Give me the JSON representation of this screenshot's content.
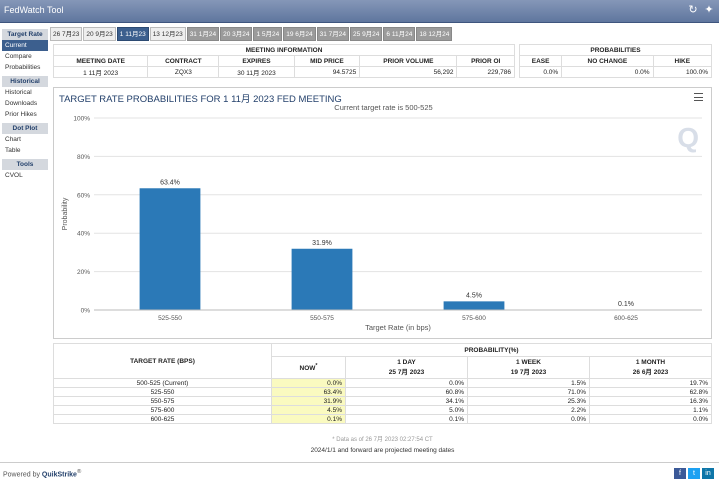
{
  "app": {
    "title": "FedWatch Tool"
  },
  "tabs": [
    "26 7月23",
    "20 9月23",
    "1 11月23",
    "13 12月23",
    "31 1月24",
    "20 3月24",
    "1 5月24",
    "19 6月24",
    "31 7月24",
    "25 9月24",
    "6 11月24",
    "18 12月24"
  ],
  "sidebar": {
    "sections": [
      {
        "header": "Target Rate",
        "items": [
          "Current",
          "Compare",
          "Probabilities"
        ]
      },
      {
        "header": "Historical",
        "items": [
          "Historical",
          "Downloads",
          "Prior Hikes"
        ]
      },
      {
        "header": "Dot Plot",
        "items": [
          "Chart",
          "Table"
        ]
      },
      {
        "header": "Tools",
        "items": [
          "CVOL"
        ]
      }
    ]
  },
  "meeting_info": {
    "title": "MEETING INFORMATION",
    "headers": [
      "MEETING DATE",
      "CONTRACT",
      "EXPIRES",
      "MID PRICE",
      "PRIOR VOLUME",
      "PRIOR OI"
    ],
    "values": [
      "1 11月 2023",
      "ZQX3",
      "30 11月 2023",
      "94.5725",
      "56,292",
      "229,786"
    ]
  },
  "probabilities": {
    "title": "PROBABILITIES",
    "headers": [
      "EASE",
      "NO CHANGE",
      "HIKE"
    ],
    "values": [
      "0.0%",
      "0.0%",
      "100.0%"
    ]
  },
  "chart": {
    "heading": "TARGET RATE PROBABILITIES FOR 1 11月 2023 FED MEETING",
    "subtitle": "Current target rate is 500-525",
    "watermark": "Q"
  },
  "chart_data": {
    "type": "bar",
    "categories": [
      "525-550",
      "550-575",
      "575-600",
      "600-625"
    ],
    "values": [
      63.4,
      31.9,
      4.5,
      0.1
    ],
    "value_labels": [
      "63.4%",
      "31.9%",
      "4.5%",
      "0.1%"
    ],
    "title": "TARGET RATE PROBABILITIES FOR 1 11月 2023 FED MEETING",
    "subtitle": "Current target rate is 500-525",
    "xlabel": "Target Rate (in bps)",
    "ylabel": "Probability",
    "ylim": [
      0,
      100
    ],
    "yticks": [
      "0%",
      "20%",
      "40%",
      "60%",
      "80%",
      "100%"
    ],
    "grid": true,
    "color": "#2b79b7"
  },
  "prob_table": {
    "col_target": "TARGET RATE (BPS)",
    "col_prob": "PROBABILITY(%)",
    "now": "NOW",
    "now_mark": "*",
    "periods": [
      {
        "label": "1 DAY",
        "date": "25 7月 2023"
      },
      {
        "label": "1 WEEK",
        "date": "19 7月 2023"
      },
      {
        "label": "1 MONTH",
        "date": "26 6月 2023"
      }
    ],
    "rows": [
      {
        "rate": "500-525 (Current)",
        "now": "0.0%",
        "d1": "0.0%",
        "w1": "1.5%",
        "m1": "19.7%"
      },
      {
        "rate": "525-550",
        "now": "63.4%",
        "d1": "60.8%",
        "w1": "71.0%",
        "m1": "62.8%"
      },
      {
        "rate": "550-575",
        "now": "31.9%",
        "d1": "34.1%",
        "w1": "25.3%",
        "m1": "16.3%"
      },
      {
        "rate": "575-600",
        "now": "4.5%",
        "d1": "5.0%",
        "w1": "2.2%",
        "m1": "1.1%"
      },
      {
        "rate": "600-625",
        "now": "0.1%",
        "d1": "0.1%",
        "w1": "0.0%",
        "m1": "0.0%"
      }
    ]
  },
  "notes": {
    "data_as_of": "* Data as of 26 7月 2023 02:27:54 CT",
    "projected": "2024/1/1 and forward are projected meeting dates"
  },
  "footer": {
    "powered_by": "Powered by",
    "brand": "QuikStrike",
    "reg": "®"
  },
  "colors": {
    "header_blue": "#3c5f8e",
    "bar": "#2b79b7",
    "now_bg": "#fafac0"
  }
}
